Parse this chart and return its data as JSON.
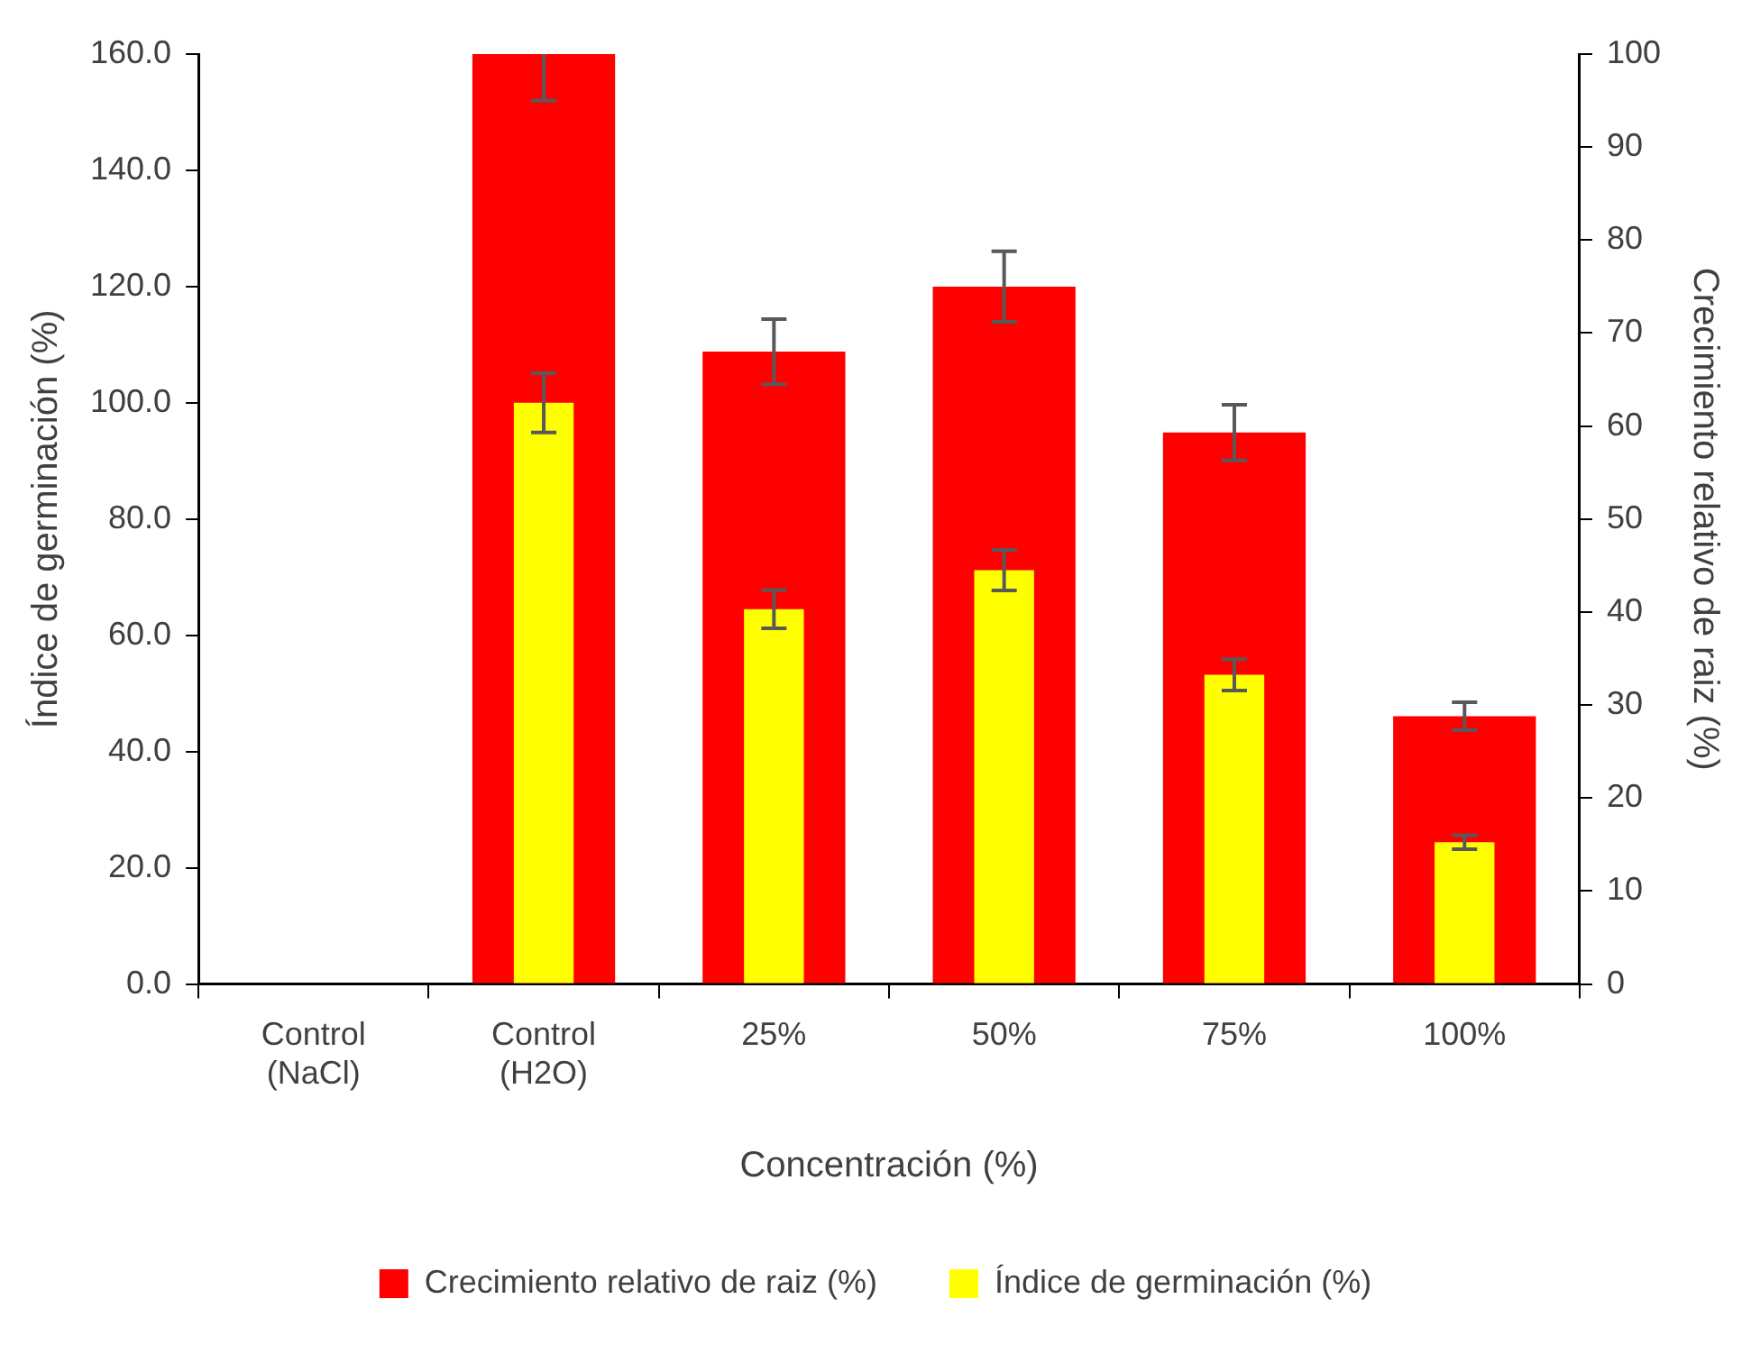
{
  "chart_data": {
    "type": "bar",
    "categories": [
      "Control (NaCl)",
      "Control (H2O)",
      "25%",
      "50%",
      "75%",
      "100%"
    ],
    "xlabel": "Concentración (%)",
    "ylabel": "Índice de germinación (%)",
    "y2label": "Crecimiento relativo de raiz (%)",
    "series": [
      {
        "name": "Crecimiento relativo de raiz (%)",
        "color": "#ff0000",
        "axis": "y2",
        "values": [
          0,
          100,
          68.0,
          75.0,
          59.3,
          28.8
        ],
        "errors": [
          null,
          [
            95.0,
            100
          ],
          3.5,
          3.8,
          3.0,
          1.5
        ]
      },
      {
        "name": "Índice de germinación (%)",
        "color": "#ffff00",
        "values": [
          0,
          100.0,
          64.5,
          71.2,
          53.2,
          24.4
        ],
        "errors": [
          null,
          5.1,
          3.3,
          3.5,
          2.7,
          1.2
        ]
      }
    ],
    "ylim": [
      0,
      160
    ],
    "yticks": [
      {
        "value": 0,
        "label": "0.0"
      },
      {
        "value": 20,
        "label": "20.0"
      },
      {
        "value": 40,
        "label": "40.0"
      },
      {
        "value": 60,
        "label": "60.0"
      },
      {
        "value": 80,
        "label": "80.0"
      },
      {
        "value": 100,
        "label": "100.0"
      },
      {
        "value": 120,
        "label": "120.0"
      },
      {
        "value": 140,
        "label": "140.0"
      },
      {
        "value": 160,
        "label": "160.0"
      }
    ],
    "y2lim": [
      0,
      100
    ],
    "y2ticks": [
      0,
      10,
      20,
      30,
      40,
      50,
      60,
      70,
      80,
      90,
      100
    ],
    "grid": false,
    "legend": "bottom"
  }
}
